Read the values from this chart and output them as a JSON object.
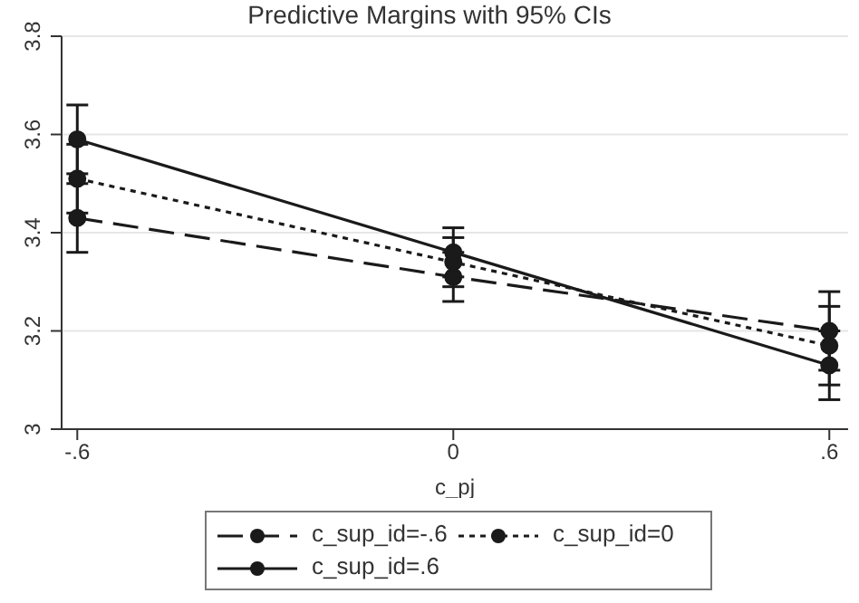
{
  "chart_data": {
    "type": "line",
    "title": "Predictive Margins with 95% CIs",
    "xlabel": "c_pj",
    "x": [
      -0.6,
      0,
      0.6
    ],
    "xlim": [
      -0.625,
      0.63
    ],
    "xticks": [
      {
        "value": -0.6,
        "label": "-.6"
      },
      0,
      {
        "value": 0.6,
        "label": ".6"
      }
    ],
    "ylim": [
      3,
      3.8
    ],
    "yticks": [
      3,
      3.2,
      3.4,
      3.6,
      3.8
    ],
    "grid": "y",
    "legend": "bottom",
    "marker": "circle",
    "series": [
      {
        "name": "c_sup_id=-.6",
        "color": "#1a1a1a",
        "line_style": "dashed",
        "values": [
          3.43,
          3.31,
          3.2
        ],
        "errors": [
          0.07,
          0.05,
          0.08
        ]
      },
      {
        "name": "c_sup_id=0",
        "color": "#1a1a1a",
        "line_style": "dotted",
        "values": [
          3.51,
          3.34,
          3.17
        ],
        "errors": [
          0.07,
          0.05,
          0.08
        ]
      },
      {
        "name": "c_sup_id=.6",
        "color": "#1a1a1a",
        "line_style": "solid",
        "values": [
          3.59,
          3.36,
          3.13
        ],
        "errors": [
          0.07,
          0.05,
          0.07
        ]
      }
    ]
  }
}
